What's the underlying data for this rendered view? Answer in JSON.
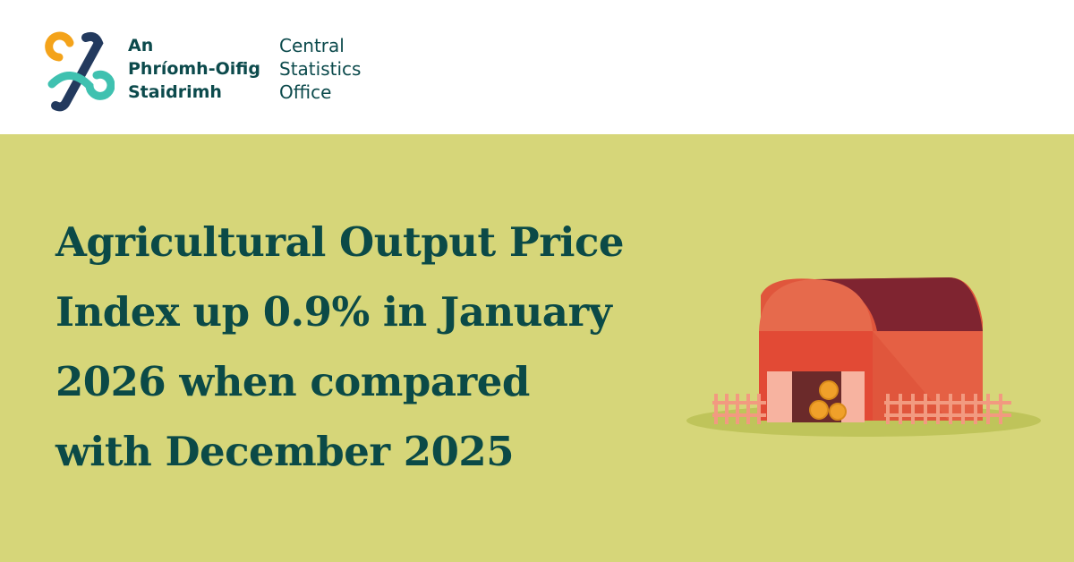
{
  "logo": {
    "irish": [
      "An",
      "Phríomh-Oifig",
      "Staidrimh"
    ],
    "english": [
      "Central",
      "Statistics",
      "Office"
    ]
  },
  "headline": [
    "Agricultural Output Price",
    "Index up 0.9% in January",
    "2026 when compared",
    "with December 2025"
  ]
}
